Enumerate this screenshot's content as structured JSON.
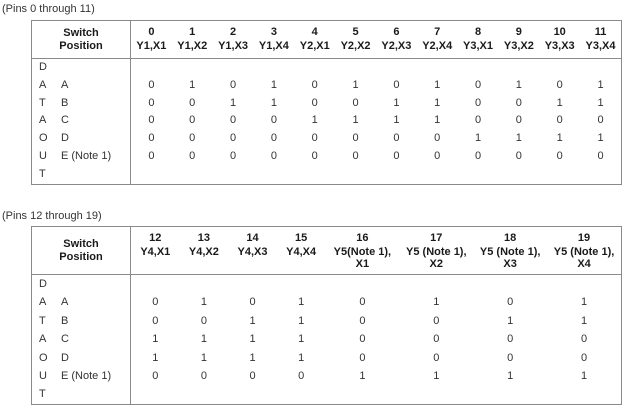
{
  "colors": {
    "background": "#ffffff",
    "border": "#8a8a8a",
    "header_text": "#1a1a1a",
    "body_text": "#333333"
  },
  "tables": [
    {
      "title": "(Pins 0 through 11)",
      "stub_header": "Switch\nPosition",
      "vertical_label": [
        "D",
        "A",
        "T",
        "A",
        "O",
        "U",
        "T"
      ],
      "columns": [
        {
          "pin": "0",
          "label": "Y1,X1"
        },
        {
          "pin": "1",
          "label": "Y1,X2"
        },
        {
          "pin": "2",
          "label": "Y1,X3"
        },
        {
          "pin": "3",
          "label": "Y1,X4"
        },
        {
          "pin": "4",
          "label": "Y2,X1"
        },
        {
          "pin": "5",
          "label": "Y2,X2"
        },
        {
          "pin": "6",
          "label": "Y2,X3"
        },
        {
          "pin": "7",
          "label": "Y2,X4"
        },
        {
          "pin": "8",
          "label": "Y3,X1"
        },
        {
          "pin": "9",
          "label": "Y3,X2"
        },
        {
          "pin": "10",
          "label": "Y3,X3"
        },
        {
          "pin": "11",
          "label": "Y3,X4"
        }
      ],
      "rows": [
        {
          "label": "A",
          "values": [
            0,
            1,
            0,
            1,
            0,
            1,
            0,
            1,
            0,
            1,
            0,
            1
          ]
        },
        {
          "label": "B",
          "values": [
            0,
            0,
            1,
            1,
            0,
            0,
            1,
            1,
            0,
            0,
            1,
            1
          ]
        },
        {
          "label": "C",
          "values": [
            0,
            0,
            0,
            0,
            1,
            1,
            1,
            1,
            0,
            0,
            0,
            0
          ]
        },
        {
          "label": "D",
          "values": [
            0,
            0,
            0,
            0,
            0,
            0,
            0,
            0,
            1,
            1,
            1,
            1
          ]
        },
        {
          "label": "E (Note 1)",
          "values": [
            0,
            0,
            0,
            0,
            0,
            0,
            0,
            0,
            0,
            0,
            0,
            0
          ]
        }
      ]
    },
    {
      "title": "(Pins 12 through 19)",
      "stub_header": "Switch\nPosition",
      "vertical_label": [
        "D",
        "A",
        "T",
        "A",
        "O",
        "U",
        "T"
      ],
      "columns": [
        {
          "pin": "12",
          "label": "Y4,X1"
        },
        {
          "pin": "13",
          "label": "Y4,X2"
        },
        {
          "pin": "14",
          "label": "Y4,X3"
        },
        {
          "pin": "15",
          "label": "Y4,X4"
        },
        {
          "pin": "16",
          "label": "Y5(Note 1),\nX1"
        },
        {
          "pin": "17",
          "label": "Y5 (Note 1),\nX2"
        },
        {
          "pin": "18",
          "label": "Y5 (Note 1),\nX3"
        },
        {
          "pin": "19",
          "label": "Y5 (Note 1),\nX4"
        }
      ],
      "rows": [
        {
          "label": "A",
          "values": [
            0,
            1,
            0,
            1,
            0,
            1,
            0,
            1
          ]
        },
        {
          "label": "B",
          "values": [
            0,
            0,
            1,
            1,
            0,
            0,
            1,
            1
          ]
        },
        {
          "label": "C",
          "values": [
            1,
            1,
            1,
            1,
            0,
            0,
            0,
            0
          ]
        },
        {
          "label": "D",
          "values": [
            1,
            1,
            1,
            1,
            0,
            0,
            0,
            0
          ]
        },
        {
          "label": "E (Note 1)",
          "values": [
            0,
            0,
            0,
            0,
            1,
            1,
            1,
            1
          ]
        }
      ]
    }
  ]
}
